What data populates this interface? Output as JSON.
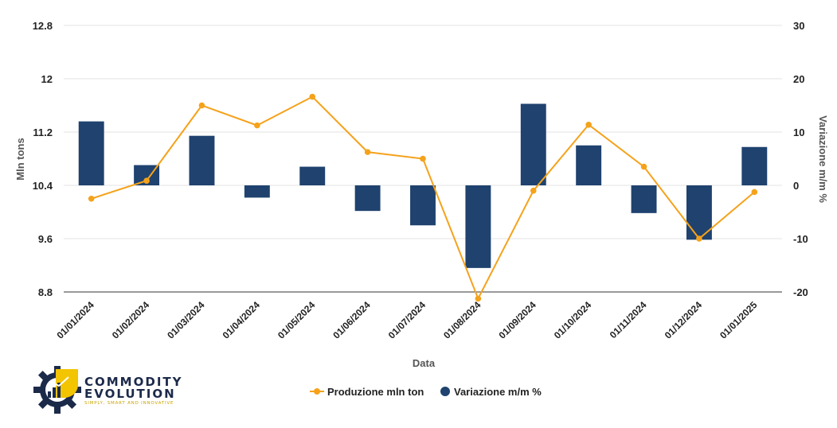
{
  "chart_data": {
    "type": "bar",
    "categories": [
      "01/01/2024",
      "01/02/2024",
      "01/03/2024",
      "01/04/2024",
      "01/05/2024",
      "01/06/2024",
      "01/07/2024",
      "01/08/2024",
      "01/09/2024",
      "01/10/2024",
      "01/11/2024",
      "01/12/2024",
      "01/01/2025"
    ],
    "series": [
      {
        "name": "Produzione mln ton",
        "type": "line",
        "axis": "left",
        "color": "#f5a21b",
        "values": [
          10.2,
          10.47,
          11.6,
          11.3,
          11.73,
          10.9,
          10.8,
          8.7,
          10.32,
          11.31,
          10.68,
          9.6,
          10.3
        ]
      },
      {
        "name": "Variazione m/m %",
        "type": "bar",
        "axis": "right",
        "color": "#1f426f",
        "values": [
          12,
          3.8,
          9.3,
          -2.3,
          3.5,
          -4.8,
          -7.5,
          -15.5,
          15.3,
          7.5,
          -5.2,
          -10.2,
          7.2
        ]
      }
    ],
    "xlabel": "Data",
    "ylabel": "Mln tons",
    "y2label": "Variazione m/m %",
    "ylim": [
      8.8,
      12.8
    ],
    "yticks": [
      "12.8",
      "12",
      "11.2",
      "10.4",
      "9.6",
      "8.8"
    ],
    "y2lim": [
      -20,
      30
    ],
    "y2ticks": [
      "30",
      "20",
      "10",
      "0",
      "-10",
      "-20"
    ],
    "grid": true,
    "legend_position": "bottom-center"
  },
  "logo": {
    "line1": "COMMODITY",
    "line2": "EVOLUTION",
    "tagline": "SIMPLY, SMART AND INNOVATIVE",
    "colors": {
      "dark": "#1c2a4a",
      "yellow": "#f3c400"
    }
  }
}
